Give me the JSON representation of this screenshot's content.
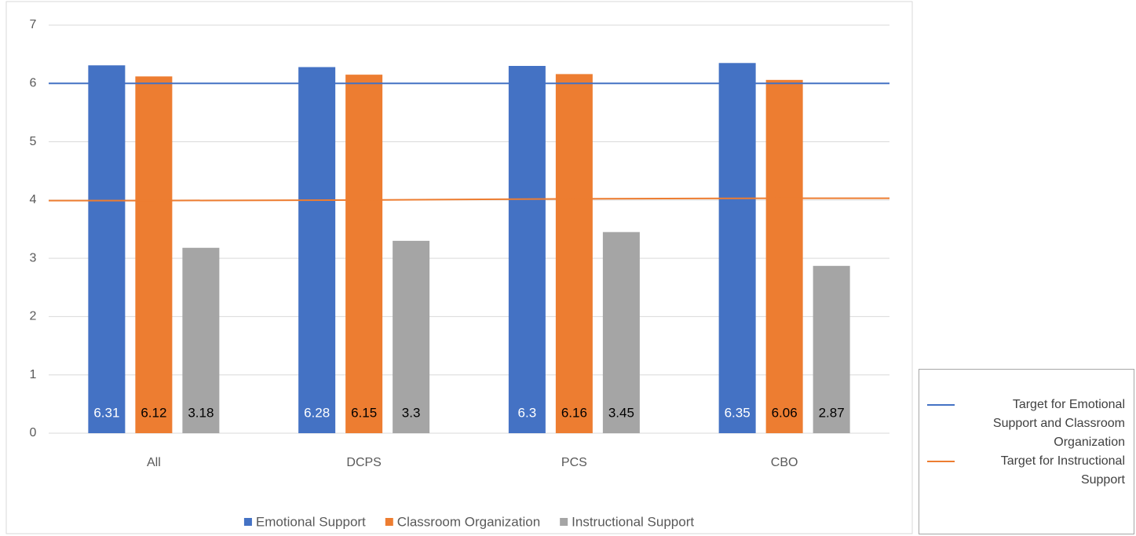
{
  "chart_data": {
    "type": "bar",
    "categories": [
      "All",
      "DCPS",
      "PCS",
      "CBO"
    ],
    "series": [
      {
        "name": "Emotional Support",
        "color": "#4472c4",
        "values": [
          6.31,
          6.28,
          6.3,
          6.35
        ]
      },
      {
        "name": "Classroom Organization",
        "color": "#ed7d31",
        "values": [
          6.12,
          6.15,
          6.16,
          6.06
        ]
      },
      {
        "name": "Instructional Support",
        "color": "#a5a5a5",
        "values": [
          3.18,
          3.3,
          3.45,
          2.87
        ]
      }
    ],
    "target_lines": [
      {
        "name": "Target for Emotional Support and Classroom Organization",
        "color": "#4472c4",
        "values": [
          6,
          6,
          6,
          6
        ]
      },
      {
        "name": "Target for Instructional Support",
        "color": "#ed7d31",
        "values": [
          3.99,
          4.0,
          4.02,
          4.03
        ]
      }
    ],
    "ylim": [
      0,
      7
    ],
    "yticks": [
      0,
      1,
      2,
      3,
      4,
      5,
      6,
      7
    ],
    "grid": true,
    "legend": "bottom"
  }
}
